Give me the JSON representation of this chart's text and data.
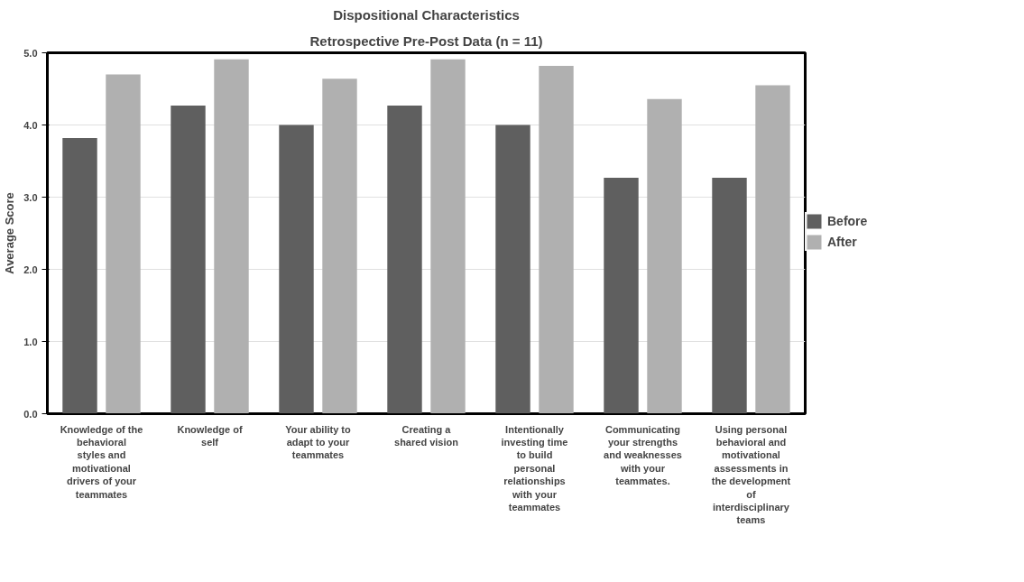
{
  "chart_data": {
    "type": "bar",
    "title": "Dispositional Characteristics",
    "subtitle": "Retrospective Pre-Post Data (n = 11)",
    "ylabel": "Average Score",
    "categories": [
      "Knowledge of the behavioral styles and motivational drivers of your teammates",
      "Knowledge of self",
      "Your ability to adapt to your teammates",
      "Creating a shared vision",
      "Intentionally investing time to build personal relationships with your teammates",
      "Communicating your strengths and weaknesses with your teammates.",
      "Using personal behavioral and motivational assessments in the development of interdisciplinary teams"
    ],
    "series": [
      {
        "name": "Before",
        "color": "#5f5f5f",
        "values": [
          3.82,
          4.27,
          4.0,
          4.27,
          4.0,
          3.27,
          3.27
        ]
      },
      {
        "name": "After",
        "color": "#b0b0b0",
        "values": [
          4.7,
          4.91,
          4.64,
          4.91,
          4.82,
          4.36,
          4.55
        ]
      }
    ],
    "ylim": [
      0,
      5
    ],
    "yticks": [
      {
        "value": 0,
        "label": "0.0"
      },
      {
        "value": 1,
        "label": "1.0"
      },
      {
        "value": 2,
        "label": "2.0"
      },
      {
        "value": 3,
        "label": "3.0"
      },
      {
        "value": 4,
        "label": "4.0"
      },
      {
        "value": 5,
        "label": "5.0"
      }
    ],
    "grid": "y",
    "legend": "right"
  }
}
